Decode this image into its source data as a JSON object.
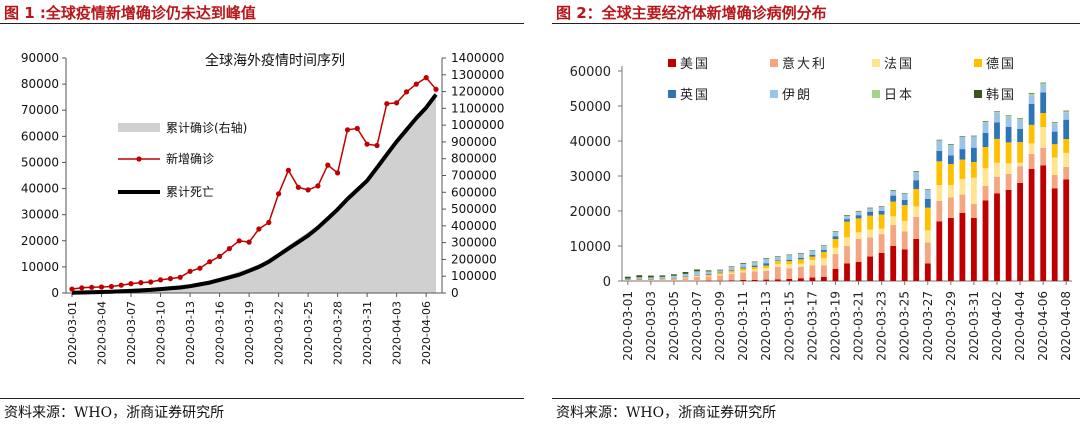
{
  "left_panel": {
    "title": "图 1 :全球疫情新增确诊仍未达到峰值",
    "source": "资料来源：WHO，浙商证券研究所"
  },
  "right_panel": {
    "title": "图 2：全球主要经济体新增确诊病例分布",
    "source": "资料来源：WHO，浙商证券研究所"
  },
  "colors": {
    "accent": "#b8161a",
    "cumulative_area": "#d0d0d0",
    "new_cases": "#c00000",
    "deaths": "#000000"
  },
  "chart_data": [
    {
      "type": "line",
      "title": "全球海外疫情时间序列",
      "dates": [
        "2020-03-01",
        "2020-03-02",
        "2020-03-03",
        "2020-03-04",
        "2020-03-05",
        "2020-03-06",
        "2020-03-07",
        "2020-03-08",
        "2020-03-09",
        "2020-03-10",
        "2020-03-11",
        "2020-03-12",
        "2020-03-13",
        "2020-03-14",
        "2020-03-15",
        "2020-03-16",
        "2020-03-17",
        "2020-03-18",
        "2020-03-19",
        "2020-03-20",
        "2020-03-21",
        "2020-03-22",
        "2020-03-23",
        "2020-03-24",
        "2020-03-25",
        "2020-03-26",
        "2020-03-27",
        "2020-03-28",
        "2020-03-29",
        "2020-03-30",
        "2020-03-31",
        "2020-04-01",
        "2020-04-02",
        "2020-04-03",
        "2020-04-04",
        "2020-04-05",
        "2020-04-06",
        "2020-04-07"
      ],
      "x_tick_labels": [
        "2020-03-01",
        "2020-03-04",
        "2020-03-07",
        "2020-03-10",
        "2020-03-13",
        "2020-03-16",
        "2020-03-19",
        "2020-03-22",
        "2020-03-25",
        "2020-03-28",
        "2020-03-31",
        "2020-04-03",
        "2020-04-06"
      ],
      "left_axis": {
        "ylim": [
          0,
          90000
        ],
        "ticks": [
          "0",
          "10000",
          "20000",
          "30000",
          "40000",
          "50000",
          "60000",
          "70000",
          "80000",
          "90000"
        ]
      },
      "right_axis": {
        "ylim": [
          0,
          1400000
        ],
        "ticks": [
          "0",
          "100000",
          "200000",
          "300000",
          "400000",
          "500000",
          "600000",
          "700000",
          "800000",
          "900000",
          "1000000",
          "1100000",
          "1200000",
          "1300000",
          "1400000"
        ]
      },
      "legend": [
        "累计确诊(右轴)",
        "新增确诊",
        "累计死亡"
      ],
      "series": [
        {
          "name": "新增确诊",
          "axis": "left",
          "style": "line-marker",
          "values": [
            1500,
            2000,
            2200,
            2300,
            2500,
            3000,
            3600,
            4000,
            4200,
            5000,
            5500,
            6000,
            8300,
            9500,
            12000,
            14000,
            17000,
            20000,
            19500,
            24500,
            27000,
            38000,
            47000,
            40500,
            39500,
            41000,
            49000,
            46000,
            62500,
            63000,
            57000,
            56500,
            72500,
            72800,
            77000,
            80000,
            82500,
            78000
          ]
        },
        {
          "name": "累计确诊(右轴)",
          "axis": "right",
          "style": "area",
          "values": [
            7000,
            9000,
            11000,
            13000,
            15500,
            19000,
            23000,
            27000,
            31000,
            35500,
            41000,
            47000,
            55000,
            64000,
            76000,
            90000,
            107000,
            128000,
            148000,
            172000,
            198000,
            236000,
            283000,
            323000,
            363000,
            404000,
            453000,
            499000,
            562000,
            625000,
            682000,
            739000,
            811000,
            884000,
            961000,
            1040000,
            1123000,
            1201000
          ]
        },
        {
          "name": "累计死亡",
          "axis": "left",
          "style": "thick-line",
          "values": [
            100,
            200,
            300,
            400,
            500,
            700,
            800,
            1000,
            1200,
            1500,
            1800,
            2100,
            2600,
            3300,
            4000,
            5000,
            6000,
            7000,
            8500,
            10000,
            12000,
            14500,
            17000,
            19500,
            22000,
            25000,
            28500,
            32000,
            36000,
            39500,
            43000,
            48000,
            53000,
            58000,
            62500,
            67000,
            71000,
            76000
          ]
        }
      ]
    },
    {
      "type": "bar",
      "stacked": true,
      "categories": [
        "2020-03-01",
        "2020-03-02",
        "2020-03-03",
        "2020-03-04",
        "2020-03-05",
        "2020-03-06",
        "2020-03-07",
        "2020-03-08",
        "2020-03-09",
        "2020-03-10",
        "2020-03-11",
        "2020-03-12",
        "2020-03-13",
        "2020-03-14",
        "2020-03-15",
        "2020-03-16",
        "2020-03-17",
        "2020-03-18",
        "2020-03-19",
        "2020-03-20",
        "2020-03-21",
        "2020-03-22",
        "2020-03-23",
        "2020-03-24",
        "2020-03-25",
        "2020-03-26",
        "2020-03-27",
        "2020-03-28",
        "2020-03-29",
        "2020-03-30",
        "2020-03-31",
        "2020-04-01",
        "2020-04-02",
        "2020-04-03",
        "2020-04-04",
        "2020-04-05",
        "2020-04-06",
        "2020-04-07",
        "2020-04-08"
      ],
      "x_tick_labels": [
        "2020-03-01",
        "2020-03-03",
        "2020-03-05",
        "2020-03-07",
        "2020-03-09",
        "2020-03-11",
        "2020-03-13",
        "2020-03-15",
        "2020-03-17",
        "2020-03-19",
        "2020-03-21",
        "2020-03-23",
        "2020-03-25",
        "2020-03-27",
        "2020-03-29",
        "2020-03-31",
        "2020-04-02",
        "2020-04-04",
        "2020-04-06",
        "2020-04-08"
      ],
      "y_ticks": [
        "0",
        "10000",
        "20000",
        "30000",
        "40000",
        "50000",
        "60000"
      ],
      "ylim": [
        0,
        60000
      ],
      "legend_placement": "top, inside plot, 4 columns",
      "series": [
        {
          "name": "美国",
          "color": "#c00000",
          "values": [
            0,
            0,
            0,
            0,
            0,
            0,
            0,
            100,
            100,
            200,
            300,
            300,
            400,
            500,
            600,
            800,
            1000,
            1200,
            3500,
            5000,
            5500,
            7000,
            8000,
            10000,
            9000,
            12000,
            5000,
            17000,
            18000,
            19500,
            18000,
            23000,
            25000,
            26000,
            28000,
            32000,
            33000,
            26500,
            29000
          ]
        },
        {
          "name": "意大利",
          "color": "#f4a582",
          "values": [
            300,
            500,
            300,
            400,
            600,
            800,
            1200,
            1200,
            1500,
            1800,
            2200,
            2500,
            2500,
            3500,
            3000,
            3200,
            3500,
            3300,
            4200,
            5000,
            6500,
            5500,
            5400,
            6000,
            5200,
            6300,
            6000,
            5900,
            5900,
            5200,
            4000,
            4200,
            4800,
            4600,
            4800,
            4300,
            5000,
            3800,
            3600
          ]
        },
        {
          "name": "法国",
          "color": "#ffe58f",
          "values": [
            50,
            80,
            100,
            150,
            100,
            200,
            300,
            200,
            300,
            400,
            500,
            500,
            800,
            900,
            1200,
            1000,
            1500,
            2000,
            1800,
            2500,
            1900,
            2200,
            1600,
            2500,
            3000,
            3000,
            3500,
            4500,
            3500,
            4500,
            7500,
            5000,
            4000,
            3000,
            1000,
            3000,
            6000,
            5000,
            4000
          ]
        },
        {
          "name": "德国",
          "color": "#ffc000",
          "values": [
            50,
            50,
            100,
            100,
            150,
            200,
            150,
            300,
            400,
            500,
            600,
            700,
            700,
            800,
            900,
            1200,
            1000,
            1800,
            2500,
            4500,
            4000,
            4000,
            4000,
            4200,
            4500,
            5000,
            6500,
            6800,
            6000,
            5500,
            4500,
            6100,
            6800,
            6000,
            5900,
            5300,
            4000,
            3800,
            4000
          ]
        },
        {
          "name": "英国",
          "color": "#2e75b6",
          "values": [
            10,
            10,
            20,
            30,
            40,
            50,
            100,
            200,
            100,
            200,
            300,
            400,
            700,
            200,
            400,
            400,
            500,
            600,
            800,
            700,
            900,
            1100,
            1000,
            1700,
            1500,
            2500,
            2500,
            3000,
            2500,
            3000,
            4100,
            4000,
            4700,
            4400,
            3800,
            6000,
            5900,
            3600,
            5500
          ]
        },
        {
          "name": "伊朗",
          "color": "#9dc3e6",
          "values": [
            300,
            400,
            500,
            500,
            600,
            800,
            1000,
            700,
            600,
            900,
            1000,
            1000,
            1300,
            1000,
            1300,
            1200,
            1100,
            1100,
            1200,
            1000,
            1000,
            1000,
            1200,
            1400,
            1700,
            2400,
            2500,
            2800,
            2900,
            3500,
            3200,
            3100,
            2800,
            2900,
            2500,
            2500,
            2200,
            2200,
            2000
          ]
        },
        {
          "name": "日本",
          "color": "#a9d18e",
          "values": [
            10,
            20,
            30,
            30,
            20,
            30,
            40,
            40,
            30,
            30,
            50,
            50,
            40,
            60,
            50,
            60,
            40,
            60,
            80,
            70,
            70,
            50,
            50,
            60,
            70,
            90,
            100,
            200,
            200,
            100,
            100,
            200,
            300,
            300,
            400,
            500,
            500,
            400,
            500
          ]
        },
        {
          "name": "韩国",
          "color": "#375623",
          "values": [
            500,
            600,
            500,
            400,
            400,
            500,
            500,
            300,
            200,
            100,
            200,
            100,
            100,
            100,
            80,
            70,
            90,
            100,
            150,
            90,
            150,
            100,
            80,
            100,
            100,
            110,
            90,
            140,
            120,
            80,
            120,
            110,
            100,
            90,
            90,
            90,
            50,
            50,
            50
          ]
        }
      ]
    }
  ]
}
